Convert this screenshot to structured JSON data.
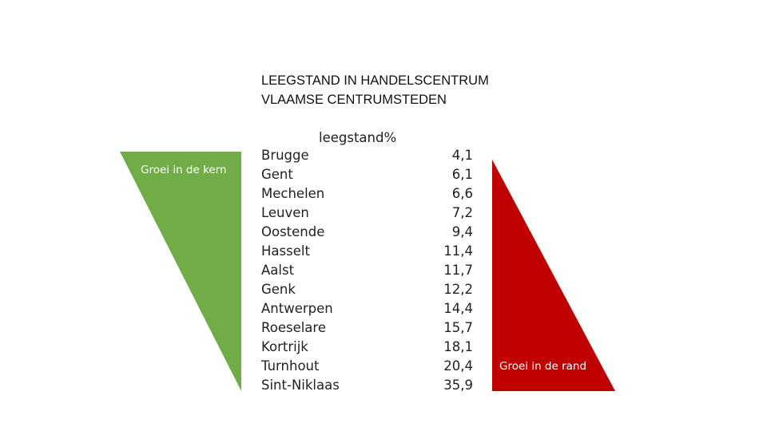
{
  "title": {
    "line1": "LEEGSTAND IN HANDELSCENTRUM",
    "line2": "VLAAMSE CENTRUMSTEDEN"
  },
  "column_header": "leegstand%",
  "rows": [
    {
      "city": "Brugge",
      "value": "4,1"
    },
    {
      "city": "Gent",
      "value": "6,1"
    },
    {
      "city": "Mechelen",
      "value": "6,6"
    },
    {
      "city": "Leuven",
      "value": "7,2"
    },
    {
      "city": "Oostende",
      "value": "9,4"
    },
    {
      "city": "Hasselt",
      "value": "11,4"
    },
    {
      "city": "Aalst",
      "value": "11,7"
    },
    {
      "city": "Genk",
      "value": "12,2"
    },
    {
      "city": "Antwerpen",
      "value": "14,4"
    },
    {
      "city": "Roeselare",
      "value": "15,7"
    },
    {
      "city": "Kortrijk",
      "value": "18,1"
    },
    {
      "city": "Turnhout",
      "value": "20,4"
    },
    {
      "city": "Sint-Niklaas",
      "value": "35,9"
    }
  ],
  "left_triangle": {
    "label": "Groei in de kern",
    "color": "#70ad47"
  },
  "right_triangle": {
    "label": "Groei in de rand",
    "color": "#c00000"
  }
}
